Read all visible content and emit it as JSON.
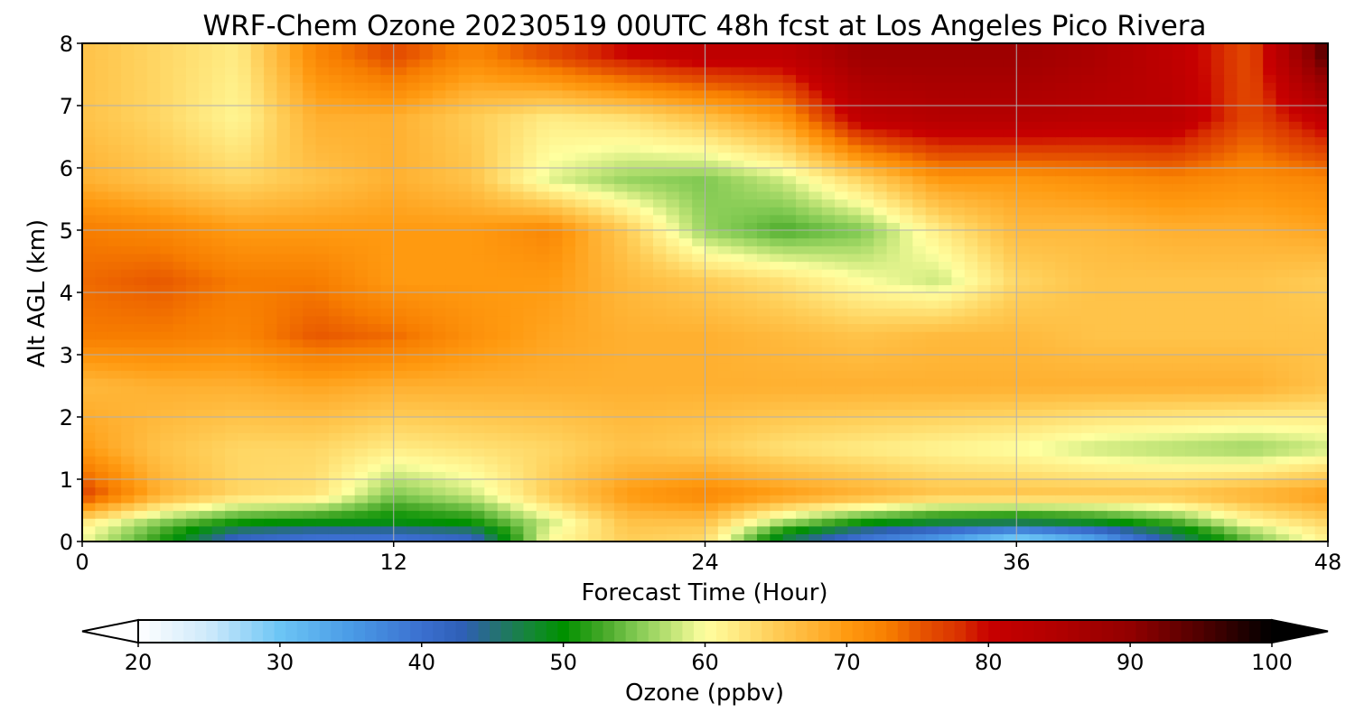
{
  "chart_data": {
    "type": "heatmap",
    "title": "WRF-Chem Ozone  20230519 00UTC 48h fcst at Los Angeles Pico Rivera",
    "xlabel": "Forecast Time (Hour)",
    "ylabel": "Alt AGL (km)",
    "xlim": [
      0,
      48
    ],
    "ylim": [
      0,
      8
    ],
    "x_ticks": [
      "0",
      "12",
      "24",
      "36",
      "48"
    ],
    "y_ticks": [
      "0",
      "1",
      "2",
      "3",
      "4",
      "5",
      "6",
      "7",
      "8"
    ],
    "grid": true,
    "x": [
      0,
      3,
      6,
      9,
      12,
      15,
      18,
      21,
      24,
      27,
      30,
      33,
      36,
      39,
      42,
      45,
      48
    ],
    "y": [
      0.1,
      0.3,
      0.75,
      1.5,
      2.5,
      3.3,
      4.2,
      5.0,
      5.8,
      6.8,
      7.8
    ],
    "z": [
      [
        60,
        52,
        42,
        40,
        40,
        42,
        60,
        65,
        64,
        48,
        40,
        36,
        30,
        35,
        45,
        55,
        62
      ],
      [
        62,
        55,
        50,
        49,
        49,
        50,
        58,
        66,
        66,
        56,
        50,
        47,
        46,
        48,
        52,
        60,
        64
      ],
      [
        77,
        68,
        64,
        63,
        55,
        58,
        65,
        70,
        72,
        70,
        68,
        66,
        66,
        66,
        66,
        68,
        70
      ],
      [
        70,
        66,
        64,
        64,
        62,
        63,
        64,
        66,
        65,
        63,
        62,
        61,
        60,
        58,
        57,
        56,
        58
      ],
      [
        67,
        68,
        68,
        69,
        68,
        68,
        68,
        68,
        68,
        68,
        68,
        68,
        68,
        68,
        68,
        68,
        66
      ],
      [
        73,
        73,
        72,
        75,
        74,
        71,
        69,
        68,
        68,
        67,
        66,
        67,
        67,
        66,
        66,
        66,
        66
      ],
      [
        74,
        75,
        73,
        73,
        70,
        70,
        70,
        67,
        65,
        63,
        60,
        58,
        64,
        66,
        66,
        66,
        65
      ],
      [
        73,
        72,
        70,
        70,
        70,
        70,
        72,
        65,
        56,
        53,
        55,
        62,
        67,
        67,
        68,
        68,
        69
      ],
      [
        68,
        66,
        64,
        66,
        68,
        66,
        59,
        56,
        55,
        58,
        64,
        70,
        70,
        71,
        72,
        71,
        72
      ],
      [
        66,
        64,
        61,
        68,
        68,
        65,
        62,
        63,
        66,
        70,
        82,
        84,
        84,
        83,
        83,
        76,
        82
      ],
      [
        66,
        64,
        62,
        72,
        76,
        72,
        76,
        80,
        82,
        82,
        88,
        88,
        88,
        86,
        82,
        76,
        95
      ]
    ],
    "colorbar": {
      "label": "Ozone  (ppbv)",
      "min": 20,
      "max": 100,
      "ticks": [
        "20",
        "30",
        "40",
        "50",
        "60",
        "70",
        "80",
        "90",
        "100"
      ],
      "extend": "both",
      "color_stops": [
        [
          20,
          "#ffffff"
        ],
        [
          25,
          "#cde9fb"
        ],
        [
          30,
          "#6cc5f5"
        ],
        [
          35,
          "#4a9be6"
        ],
        [
          40,
          "#3b6fcf"
        ],
        [
          43,
          "#2e5fb5"
        ],
        [
          45,
          "#266f7a"
        ],
        [
          48,
          "#128a2e"
        ],
        [
          50,
          "#009000"
        ],
        [
          53,
          "#4aaa2a"
        ],
        [
          55,
          "#7ec850"
        ],
        [
          58,
          "#c9e87c"
        ],
        [
          60,
          "#ffffa0"
        ],
        [
          62,
          "#ffec85"
        ],
        [
          65,
          "#ffcc55"
        ],
        [
          68,
          "#ffb030"
        ],
        [
          70,
          "#ff9a10"
        ],
        [
          73,
          "#f77d00"
        ],
        [
          75,
          "#e85800"
        ],
        [
          78,
          "#d93000"
        ],
        [
          80,
          "#c80000"
        ],
        [
          85,
          "#b00000"
        ],
        [
          90,
          "#920000"
        ],
        [
          95,
          "#500000"
        ],
        [
          100,
          "#000000"
        ]
      ]
    }
  }
}
